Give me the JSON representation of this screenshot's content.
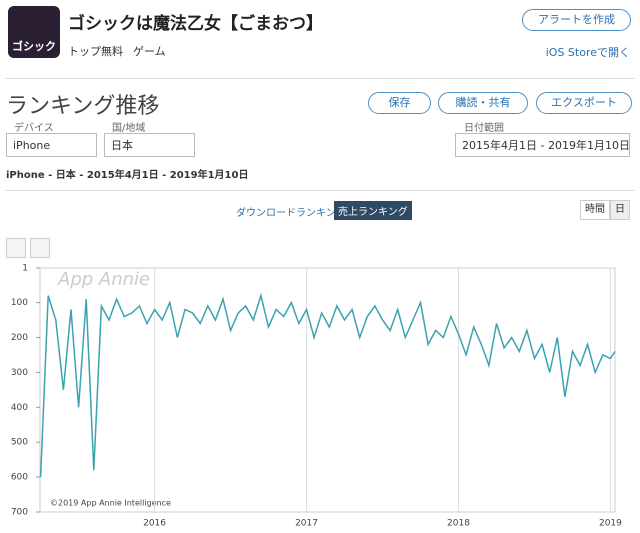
{
  "header": {
    "app_title": "ゴシックは魔法乙女【ごまおつ】",
    "icon_label": "ゴシック",
    "chart_label": "トップ無料",
    "category": "ゲーム",
    "alert_button": "アラートを作成",
    "store_link": "iOS Storeで開く"
  },
  "toolbar": {
    "title": "ランキング推移",
    "buttons": [
      "保存",
      "購読・共有",
      "エクスポート"
    ]
  },
  "filters": {
    "device_label": "デバイス",
    "device": "iPhone",
    "country_label": "国/地域",
    "country": "日本",
    "date_label": "日付範囲",
    "date": "2015年4月1日 - 2019年1月10日"
  },
  "summary": "iPhone - 日本 - 2015年4月1日 - 2019年1月10日",
  "tabs": [
    "ダウンロードランキング",
    "売上ランキング"
  ],
  "granularity": [
    "時間",
    "日"
  ],
  "chart_data": {
    "type": "line",
    "watermark": "App Annie",
    "copyright": "©2019 App Annie Intelligence",
    "color": "#3aa3b0",
    "grid": "x",
    "y_inverted": true,
    "xlim": [
      2015.246,
      2019.03
    ],
    "xticks": [
      2016,
      2017,
      2018,
      2019
    ],
    "ylim": [
      1,
      700
    ],
    "yticks": [
      1,
      100,
      200,
      300,
      400,
      500,
      600,
      700
    ],
    "x": [
      2015.25,
      2015.3,
      2015.35,
      2015.4,
      2015.45,
      2015.5,
      2015.55,
      2015.6,
      2015.65,
      2015.7,
      2015.75,
      2015.8,
      2015.85,
      2015.9,
      2015.95,
      2016.0,
      2016.05,
      2016.1,
      2016.15,
      2016.2,
      2016.25,
      2016.3,
      2016.35,
      2016.4,
      2016.45,
      2016.5,
      2016.55,
      2016.6,
      2016.65,
      2016.7,
      2016.75,
      2016.8,
      2016.85,
      2016.9,
      2016.95,
      2017.0,
      2017.05,
      2017.1,
      2017.15,
      2017.2,
      2017.25,
      2017.3,
      2017.35,
      2017.4,
      2017.45,
      2017.5,
      2017.55,
      2017.6,
      2017.65,
      2017.7,
      2017.75,
      2017.8,
      2017.85,
      2017.9,
      2017.95,
      2018.0,
      2018.05,
      2018.1,
      2018.15,
      2018.2,
      2018.25,
      2018.3,
      2018.35,
      2018.4,
      2018.45,
      2018.5,
      2018.55,
      2018.6,
      2018.65,
      2018.7,
      2018.75,
      2018.8,
      2018.85,
      2018.9,
      2018.95,
      2019.0,
      2019.03
    ],
    "values": [
      600,
      80,
      150,
      350,
      120,
      400,
      90,
      580,
      110,
      150,
      90,
      140,
      130,
      110,
      160,
      120,
      150,
      100,
      200,
      120,
      130,
      160,
      110,
      150,
      90,
      180,
      130,
      110,
      150,
      80,
      170,
      120,
      140,
      100,
      160,
      120,
      200,
      130,
      170,
      110,
      150,
      120,
      200,
      140,
      110,
      150,
      180,
      120,
      200,
      150,
      100,
      220,
      180,
      200,
      140,
      190,
      250,
      170,
      220,
      280,
      160,
      230,
      200,
      240,
      180,
      260,
      220,
      300,
      200,
      370,
      240,
      280,
      220,
      300,
      250,
      260,
      240
    ]
  }
}
